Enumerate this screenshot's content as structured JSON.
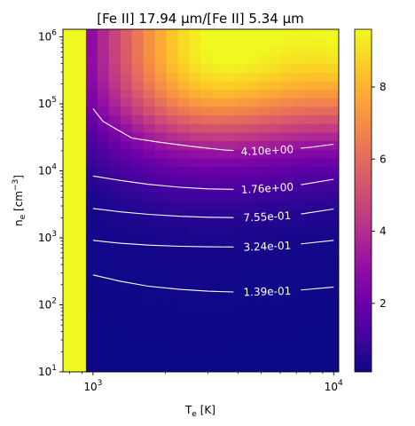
{
  "chart_data": {
    "type": "heatmap",
    "title": "[Fe II] 17.94 μm/[Fe II] 5.34 μm",
    "xlabel_base": "T",
    "xlabel_sub": "e",
    "xlabel_unit": " [K]",
    "ylabel_base": "n",
    "ylabel_sub": "e",
    "ylabel_unit_pre": " [cm",
    "ylabel_unit_sup": "−3",
    "ylabel_unit_post": "]",
    "x_scale": "log",
    "y_scale": "log",
    "xlim": [
      750,
      10500
    ],
    "ylim": [
      10,
      1300000
    ],
    "x_ticks": [
      {
        "value": 1000,
        "base": "10",
        "exp": "3"
      },
      {
        "value": 10000,
        "base": "10",
        "exp": "4"
      }
    ],
    "y_ticks": [
      {
        "value": 10,
        "base": "10",
        "exp": "1"
      },
      {
        "value": 100,
        "base": "10",
        "exp": "2"
      },
      {
        "value": 1000,
        "base": "10",
        "exp": "3"
      },
      {
        "value": 10000,
        "base": "10",
        "exp": "4"
      },
      {
        "value": 100000,
        "base": "10",
        "exp": "5"
      },
      {
        "value": 1000000,
        "base": "10",
        "exp": "6"
      }
    ],
    "colormap": "plasma",
    "colorbar": {
      "vmin": 0.1,
      "vmax": 9.6,
      "ticks": [
        2,
        4,
        6,
        8
      ]
    },
    "contours": [
      {
        "label": "4.10e+00",
        "points": [
          [
            1000,
            85000
          ],
          [
            1100,
            55000
          ],
          [
            1250,
            42000
          ],
          [
            1450,
            31000
          ],
          [
            1800,
            27500
          ],
          [
            2500,
            23500
          ],
          [
            3500,
            20500
          ],
          [
            4500,
            19500
          ],
          [
            6000,
            20500
          ],
          [
            8000,
            22500
          ],
          [
            10000,
            25000
          ]
        ]
      },
      {
        "label": "1.76e+00",
        "points": [
          [
            1000,
            8400
          ],
          [
            1300,
            7200
          ],
          [
            1700,
            6300
          ],
          [
            2300,
            5700
          ],
          [
            3000,
            5400
          ],
          [
            4000,
            5300
          ],
          [
            5500,
            5500
          ],
          [
            7500,
            6300
          ],
          [
            10000,
            7500
          ]
        ]
      },
      {
        "label": "7.55e-01",
        "points": [
          [
            1000,
            2750
          ],
          [
            1300,
            2450
          ],
          [
            1700,
            2250
          ],
          [
            2300,
            2100
          ],
          [
            3000,
            2030
          ],
          [
            4000,
            2000
          ],
          [
            5500,
            2080
          ],
          [
            7500,
            2300
          ],
          [
            10000,
            2700
          ]
        ]
      },
      {
        "label": "3.24e-01",
        "points": [
          [
            1000,
            920
          ],
          [
            1300,
            830
          ],
          [
            1700,
            780
          ],
          [
            2300,
            750
          ],
          [
            3000,
            735
          ],
          [
            4000,
            730
          ],
          [
            5500,
            750
          ],
          [
            7500,
            820
          ],
          [
            10000,
            920
          ]
        ]
      },
      {
        "label": "1.39e-01",
        "points": [
          [
            1000,
            280
          ],
          [
            1300,
            225
          ],
          [
            1700,
            190
          ],
          [
            2300,
            170
          ],
          [
            3000,
            160
          ],
          [
            4000,
            155
          ],
          [
            5500,
            158
          ],
          [
            7500,
            168
          ],
          [
            10000,
            185
          ]
        ]
      }
    ]
  }
}
